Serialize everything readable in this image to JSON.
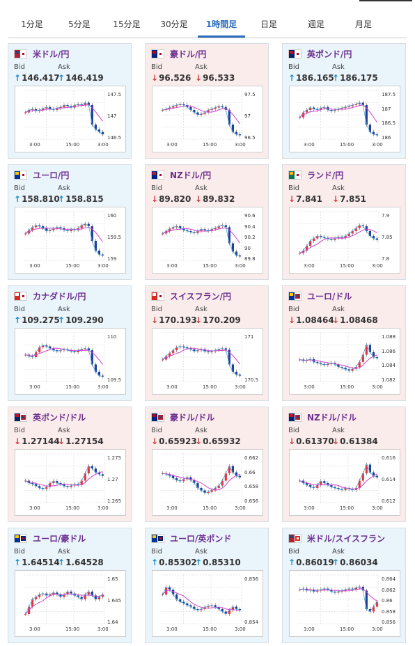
{
  "tabs": [
    {
      "label": "1分足",
      "active": false
    },
    {
      "label": "5分足",
      "active": false
    },
    {
      "label": "15分足",
      "active": false
    },
    {
      "label": "30分足",
      "active": false
    },
    {
      "label": "1時間足",
      "active": true
    },
    {
      "label": "日足",
      "active": false
    },
    {
      "label": "週足",
      "active": false
    },
    {
      "label": "月足",
      "active": false
    }
  ],
  "labels": {
    "bid": "Bid",
    "ask": "Ask"
  },
  "x_ticks": [
    "3:00",
    "15:00",
    "3:00"
  ],
  "cards": [
    {
      "name": "米ドル/円",
      "flag": "us-jp",
      "dir": "up",
      "bid": "146.417",
      "ask": "146.419",
      "y_ticks": [
        "147.5",
        "147",
        "146.5"
      ],
      "trend": [
        0.55,
        0.6,
        0.62,
        0.58,
        0.6,
        0.63,
        0.66,
        0.62,
        0.6,
        0.64,
        0.66,
        0.7,
        0.68,
        0.65,
        0.7,
        0.72,
        0.7,
        0.75,
        0.7,
        0.3,
        0.2,
        0.15,
        0.1
      ]
    },
    {
      "name": "豪ドル/円",
      "flag": "au-jp",
      "dir": "down",
      "bid": "96.526",
      "ask": "96.533",
      "y_ticks": [
        "97.5",
        "97",
        "96.5"
      ],
      "trend": [
        0.6,
        0.62,
        0.65,
        0.68,
        0.7,
        0.72,
        0.7,
        0.66,
        0.6,
        0.55,
        0.5,
        0.52,
        0.55,
        0.6,
        0.62,
        0.65,
        0.68,
        0.66,
        0.6,
        0.3,
        0.15,
        0.1,
        0.08
      ]
    },
    {
      "name": "英ポンド/円",
      "flag": "gb-jp",
      "dir": "up",
      "bid": "186.165",
      "ask": "186.175",
      "y_ticks": [
        "187.5",
        "187",
        "186.5",
        "186"
      ],
      "trend": [
        0.45,
        0.55,
        0.6,
        0.65,
        0.62,
        0.6,
        0.64,
        0.66,
        0.6,
        0.58,
        0.6,
        0.62,
        0.64,
        0.66,
        0.68,
        0.7,
        0.72,
        0.75,
        0.7,
        0.3,
        0.15,
        0.1,
        0.08
      ]
    },
    {
      "name": "ユーロ/円",
      "flag": "eu-jp",
      "dir": "up",
      "bid": "158.810",
      "ask": "158.815",
      "y_ticks": [
        "160",
        "159.5",
        "159"
      ],
      "trend": [
        0.55,
        0.62,
        0.68,
        0.72,
        0.7,
        0.66,
        0.6,
        0.62,
        0.65,
        0.68,
        0.66,
        0.62,
        0.6,
        0.64,
        0.62,
        0.66,
        0.72,
        0.75,
        0.7,
        0.4,
        0.2,
        0.12,
        0.1
      ]
    },
    {
      "name": "NZドル/円",
      "flag": "nz-jp",
      "dir": "down",
      "bid": "89.820",
      "ask": "89.832",
      "y_ticks": [
        "90.6",
        "90.4",
        "90.2",
        "90",
        "89.8"
      ],
      "trend": [
        0.55,
        0.6,
        0.65,
        0.68,
        0.7,
        0.66,
        0.62,
        0.6,
        0.58,
        0.56,
        0.6,
        0.64,
        0.62,
        0.6,
        0.64,
        0.66,
        0.7,
        0.72,
        0.68,
        0.35,
        0.18,
        0.1,
        0.08
      ]
    },
    {
      "name": "ランド/円",
      "flag": "za-jp",
      "dir": "down",
      "bid": "7.841",
      "ask": "7.851",
      "y_ticks": [
        "7.9",
        "7.85",
        "7.8"
      ],
      "trend": [
        0.15,
        0.2,
        0.3,
        0.4,
        0.45,
        0.5,
        0.48,
        0.46,
        0.44,
        0.42,
        0.45,
        0.48,
        0.46,
        0.5,
        0.55,
        0.6,
        0.66,
        0.72,
        0.7,
        0.6,
        0.5,
        0.45,
        0.42
      ]
    },
    {
      "name": "カナダドル/円",
      "flag": "ca-jp",
      "dir": "up",
      "bid": "109.275",
      "ask": "109.290",
      "y_ticks": [
        "110",
        "109.5"
      ],
      "trend": [
        0.55,
        0.52,
        0.5,
        0.6,
        0.7,
        0.74,
        0.72,
        0.68,
        0.64,
        0.62,
        0.64,
        0.66,
        0.64,
        0.62,
        0.6,
        0.64,
        0.66,
        0.68,
        0.64,
        0.35,
        0.2,
        0.12,
        0.1
      ]
    },
    {
      "name": "スイスフラン/円",
      "flag": "ch-jp",
      "dir": "down",
      "bid": "170.193",
      "ask": "170.209",
      "y_ticks": [
        "171",
        "170.5"
      ],
      "trend": [
        0.45,
        0.52,
        0.58,
        0.64,
        0.7,
        0.72,
        0.7,
        0.68,
        0.66,
        0.62,
        0.64,
        0.66,
        0.62,
        0.6,
        0.62,
        0.64,
        0.66,
        0.68,
        0.65,
        0.35,
        0.2,
        0.14,
        0.12
      ]
    },
    {
      "name": "ユーロ/ドル",
      "flag": "eu-us",
      "dir": "down",
      "bid": "1.08464",
      "ask": "1.08468",
      "y_ticks": [
        "1.088",
        "1.086",
        "1.084",
        "1.082"
      ],
      "trend": [
        0.45,
        0.42,
        0.44,
        0.46,
        0.4,
        0.38,
        0.36,
        0.34,
        0.36,
        0.38,
        0.35,
        0.3,
        0.28,
        0.25,
        0.22,
        0.26,
        0.3,
        0.4,
        0.55,
        0.75,
        0.6,
        0.5,
        0.48
      ]
    },
    {
      "name": "英ポンド/ドル",
      "flag": "gb-us",
      "dir": "down",
      "bid": "1.27144",
      "ask": "1.27154",
      "y_ticks": [
        "1.275",
        "1.27",
        "1.265"
      ],
      "trend": [
        0.45,
        0.4,
        0.38,
        0.34,
        0.3,
        0.28,
        0.32,
        0.4,
        0.44,
        0.4,
        0.38,
        0.34,
        0.32,
        0.35,
        0.38,
        0.36,
        0.45,
        0.6,
        0.75,
        0.7,
        0.62,
        0.58,
        0.55
      ]
    },
    {
      "name": "豪ドル/ドル",
      "flag": "au-us",
      "dir": "down",
      "bid": "0.65923",
      "ask": "0.65932",
      "y_ticks": [
        "0.662",
        "0.66",
        "0.658",
        "0.656"
      ],
      "trend": [
        0.6,
        0.58,
        0.55,
        0.5,
        0.46,
        0.44,
        0.48,
        0.52,
        0.46,
        0.4,
        0.3,
        0.25,
        0.2,
        0.22,
        0.26,
        0.3,
        0.35,
        0.45,
        0.6,
        0.75,
        0.62,
        0.55,
        0.52
      ]
    },
    {
      "name": "NZドル/ドル",
      "flag": "nz-us",
      "dir": "down",
      "bid": "0.61370",
      "ask": "0.61384",
      "y_ticks": [
        "0.616",
        "0.614",
        "0.612"
      ],
      "trend": [
        0.45,
        0.4,
        0.36,
        0.32,
        0.3,
        0.36,
        0.44,
        0.4,
        0.36,
        0.32,
        0.3,
        0.28,
        0.26,
        0.3,
        0.28,
        0.26,
        0.3,
        0.45,
        0.6,
        0.78,
        0.62,
        0.55,
        0.52
      ]
    },
    {
      "name": "ユーロ/豪ドル",
      "flag": "eu-au",
      "dir": "up",
      "bid": "1.64514",
      "ask": "1.64528",
      "y_ticks": [
        "1.65",
        "1.645",
        "1.64"
      ],
      "trend": [
        0.2,
        0.35,
        0.5,
        0.55,
        0.6,
        0.62,
        0.58,
        0.6,
        0.64,
        0.6,
        0.55,
        0.6,
        0.66,
        0.62,
        0.58,
        0.55,
        0.5,
        0.6,
        0.66,
        0.58,
        0.5,
        0.55,
        0.6
      ]
    },
    {
      "name": "ユーロ/英ポンド",
      "flag": "eu-gb",
      "dir": "up",
      "bid": "0.85302",
      "ask": "0.85310",
      "y_ticks": [
        "0.856",
        "0.854"
      ],
      "trend": [
        0.6,
        0.75,
        0.7,
        0.6,
        0.5,
        0.45,
        0.42,
        0.38,
        0.35,
        0.3,
        0.28,
        0.3,
        0.34,
        0.36,
        0.38,
        0.34,
        0.3,
        0.25,
        0.2,
        0.28,
        0.35,
        0.3,
        0.28
      ]
    },
    {
      "name": "米ドル/スイスフラン",
      "flag": "us-ch",
      "dir": "up",
      "bid": "0.86019",
      "ask": "0.86034",
      "y_ticks": [
        "0.864",
        "0.862",
        "0.86",
        "0.858",
        "0.856"
      ],
      "trend": [
        0.7,
        0.72,
        0.68,
        0.7,
        0.66,
        0.68,
        0.7,
        0.72,
        0.7,
        0.66,
        0.64,
        0.66,
        0.68,
        0.7,
        0.72,
        0.7,
        0.74,
        0.76,
        0.68,
        0.3,
        0.25,
        0.35,
        0.45
      ]
    }
  ]
}
